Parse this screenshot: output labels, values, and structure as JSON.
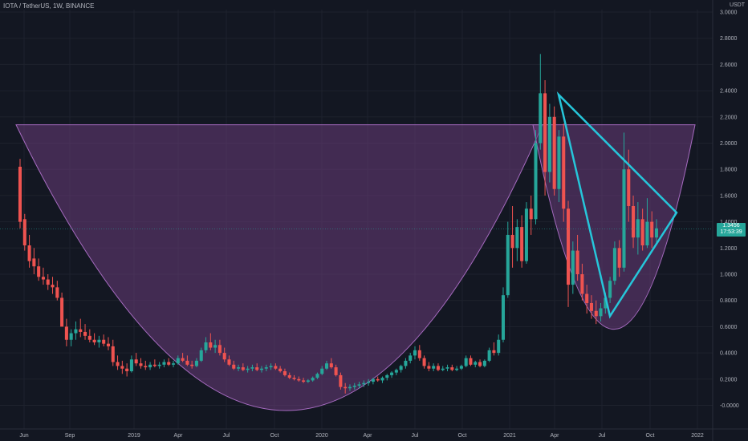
{
  "header": {
    "title": "IOTA / TetherUS, 1W, BINANCE",
    "quote_currency": "USDT"
  },
  "current_price": {
    "price": "1.3456",
    "countdown": "17:53:39",
    "value": 1.3456
  },
  "colors": {
    "background": "#131722",
    "up": "#26a69a",
    "down": "#ef5350",
    "pattern_fill": "#6a3d7a",
    "pattern_line": "#a66bc0",
    "triangle": "#26c6da"
  },
  "chart_data": {
    "type": "candlestick",
    "title": "IOTA / TetherUS, 1W, BINANCE",
    "ylabel": "USDT",
    "ylim": [
      -0.05,
      3.0
    ],
    "y_ticks": [
      "3.0000",
      "2.8000",
      "2.6000",
      "2.4000",
      "2.2000",
      "2.0000",
      "1.8000",
      "1.6000",
      "1.4000",
      "1.2000",
      "1.0000",
      "0.8000",
      "0.6000",
      "0.4000",
      "0.2000",
      "-0.0000"
    ],
    "x_ticks": [
      "Jun",
      "Sep",
      "2019",
      "Apr",
      "Jul",
      "Oct",
      "2020",
      "Apr",
      "Jul",
      "Oct",
      "2021",
      "Apr",
      "Jul",
      "Oct",
      "2022"
    ],
    "grid": true,
    "series": [
      {
        "name": "IOTA / TetherUS",
        "ohlc": [
          [
            1.82,
            1.88,
            1.35,
            1.4
          ],
          [
            1.42,
            1.46,
            1.18,
            1.22
          ],
          [
            1.22,
            1.3,
            1.05,
            1.1
          ],
          [
            1.12,
            1.2,
            1.0,
            1.06
          ],
          [
            1.06,
            1.12,
            0.95,
            0.98
          ],
          [
            0.98,
            1.05,
            0.92,
            0.96
          ],
          [
            0.96,
            1.0,
            0.88,
            0.92
          ],
          [
            0.92,
            0.98,
            0.85,
            0.9
          ],
          [
            0.9,
            0.95,
            0.8,
            0.82
          ],
          [
            0.82,
            0.86,
            0.62,
            0.6
          ],
          [
            0.6,
            0.66,
            0.45,
            0.5
          ],
          [
            0.5,
            0.58,
            0.45,
            0.55
          ],
          [
            0.55,
            0.64,
            0.5,
            0.58
          ],
          [
            0.58,
            0.66,
            0.52,
            0.56
          ],
          [
            0.56,
            0.62,
            0.5,
            0.53
          ],
          [
            0.53,
            0.58,
            0.48,
            0.5
          ],
          [
            0.5,
            0.55,
            0.46,
            0.48
          ],
          [
            0.48,
            0.53,
            0.44,
            0.5
          ],
          [
            0.5,
            0.54,
            0.45,
            0.47
          ],
          [
            0.47,
            0.52,
            0.42,
            0.45
          ],
          [
            0.45,
            0.5,
            0.3,
            0.33
          ],
          [
            0.33,
            0.38,
            0.27,
            0.3
          ],
          [
            0.3,
            0.34,
            0.24,
            0.28
          ],
          [
            0.28,
            0.32,
            0.22,
            0.26
          ],
          [
            0.26,
            0.38,
            0.25,
            0.35
          ],
          [
            0.35,
            0.4,
            0.3,
            0.32
          ],
          [
            0.32,
            0.36,
            0.28,
            0.3
          ],
          [
            0.3,
            0.34,
            0.27,
            0.29
          ],
          [
            0.29,
            0.33,
            0.27,
            0.31
          ],
          [
            0.31,
            0.35,
            0.29,
            0.3
          ],
          [
            0.3,
            0.33,
            0.28,
            0.31
          ],
          [
            0.31,
            0.35,
            0.29,
            0.33
          ],
          [
            0.33,
            0.36,
            0.3,
            0.31
          ],
          [
            0.31,
            0.34,
            0.29,
            0.32
          ],
          [
            0.32,
            0.38,
            0.31,
            0.36
          ],
          [
            0.36,
            0.4,
            0.33,
            0.34
          ],
          [
            0.34,
            0.38,
            0.3,
            0.31
          ],
          [
            0.31,
            0.34,
            0.28,
            0.3
          ],
          [
            0.3,
            0.36,
            0.29,
            0.34
          ],
          [
            0.34,
            0.44,
            0.33,
            0.42
          ],
          [
            0.42,
            0.52,
            0.4,
            0.48
          ],
          [
            0.48,
            0.55,
            0.42,
            0.44
          ],
          [
            0.44,
            0.5,
            0.4,
            0.46
          ],
          [
            0.46,
            0.5,
            0.38,
            0.4
          ],
          [
            0.4,
            0.44,
            0.33,
            0.35
          ],
          [
            0.35,
            0.38,
            0.3,
            0.31
          ],
          [
            0.31,
            0.34,
            0.27,
            0.28
          ],
          [
            0.28,
            0.31,
            0.26,
            0.29
          ],
          [
            0.29,
            0.32,
            0.26,
            0.27
          ],
          [
            0.27,
            0.3,
            0.25,
            0.28
          ],
          [
            0.28,
            0.31,
            0.26,
            0.29
          ],
          [
            0.29,
            0.32,
            0.26,
            0.27
          ],
          [
            0.27,
            0.3,
            0.25,
            0.28
          ],
          [
            0.28,
            0.31,
            0.26,
            0.29
          ],
          [
            0.29,
            0.32,
            0.27,
            0.3
          ],
          [
            0.3,
            0.32,
            0.27,
            0.28
          ],
          [
            0.28,
            0.3,
            0.25,
            0.26
          ],
          [
            0.26,
            0.28,
            0.22,
            0.23
          ],
          [
            0.23,
            0.25,
            0.2,
            0.21
          ],
          [
            0.21,
            0.23,
            0.19,
            0.2
          ],
          [
            0.2,
            0.22,
            0.18,
            0.19
          ],
          [
            0.19,
            0.21,
            0.17,
            0.18
          ],
          [
            0.18,
            0.2,
            0.17,
            0.19
          ],
          [
            0.19,
            0.22,
            0.18,
            0.21
          ],
          [
            0.21,
            0.25,
            0.2,
            0.24
          ],
          [
            0.24,
            0.3,
            0.23,
            0.28
          ],
          [
            0.28,
            0.34,
            0.27,
            0.32
          ],
          [
            0.32,
            0.36,
            0.28,
            0.29
          ],
          [
            0.29,
            0.31,
            0.22,
            0.23
          ],
          [
            0.23,
            0.25,
            0.12,
            0.14
          ],
          [
            0.14,
            0.17,
            0.09,
            0.13
          ],
          [
            0.13,
            0.16,
            0.11,
            0.14
          ],
          [
            0.14,
            0.17,
            0.12,
            0.15
          ],
          [
            0.15,
            0.18,
            0.13,
            0.16
          ],
          [
            0.16,
            0.19,
            0.14,
            0.17
          ],
          [
            0.17,
            0.2,
            0.15,
            0.18
          ],
          [
            0.18,
            0.21,
            0.16,
            0.2
          ],
          [
            0.2,
            0.22,
            0.18,
            0.19
          ],
          [
            0.19,
            0.22,
            0.17,
            0.21
          ],
          [
            0.21,
            0.24,
            0.19,
            0.23
          ],
          [
            0.23,
            0.26,
            0.21,
            0.25
          ],
          [
            0.25,
            0.28,
            0.23,
            0.27
          ],
          [
            0.27,
            0.31,
            0.25,
            0.3
          ],
          [
            0.3,
            0.36,
            0.28,
            0.34
          ],
          [
            0.34,
            0.4,
            0.32,
            0.38
          ],
          [
            0.38,
            0.45,
            0.35,
            0.42
          ],
          [
            0.42,
            0.46,
            0.34,
            0.36
          ],
          [
            0.36,
            0.38,
            0.28,
            0.3
          ],
          [
            0.3,
            0.33,
            0.26,
            0.28
          ],
          [
            0.28,
            0.32,
            0.26,
            0.3
          ],
          [
            0.3,
            0.32,
            0.26,
            0.27
          ],
          [
            0.27,
            0.3,
            0.26,
            0.28
          ],
          [
            0.28,
            0.31,
            0.26,
            0.29
          ],
          [
            0.29,
            0.31,
            0.26,
            0.27
          ],
          [
            0.27,
            0.3,
            0.26,
            0.28
          ],
          [
            0.28,
            0.31,
            0.27,
            0.3
          ],
          [
            0.3,
            0.38,
            0.29,
            0.36
          ],
          [
            0.36,
            0.38,
            0.3,
            0.31
          ],
          [
            0.31,
            0.34,
            0.29,
            0.33
          ],
          [
            0.33,
            0.35,
            0.29,
            0.3
          ],
          [
            0.3,
            0.35,
            0.29,
            0.34
          ],
          [
            0.34,
            0.44,
            0.33,
            0.42
          ],
          [
            0.42,
            0.48,
            0.38,
            0.4
          ],
          [
            0.4,
            0.54,
            0.38,
            0.5
          ],
          [
            0.5,
            0.9,
            0.48,
            0.84
          ],
          [
            0.84,
            1.4,
            0.82,
            1.3
          ],
          [
            1.3,
            1.52,
            1.05,
            1.2
          ],
          [
            1.2,
            1.42,
            1.1,
            1.36
          ],
          [
            1.36,
            1.45,
            1.05,
            1.1
          ],
          [
            1.1,
            1.55,
            1.08,
            1.5
          ],
          [
            1.5,
            1.6,
            1.3,
            1.42
          ],
          [
            1.42,
            2.1,
            1.38,
            2.0
          ],
          [
            2.0,
            2.68,
            1.95,
            2.38
          ],
          [
            2.38,
            2.48,
            1.6,
            1.78
          ],
          [
            1.78,
            2.3,
            1.7,
            2.2
          ],
          [
            2.2,
            2.28,
            1.6,
            1.65
          ],
          [
            1.65,
            2.1,
            1.55,
            2.05
          ],
          [
            2.05,
            2.15,
            1.4,
            1.5
          ],
          [
            1.5,
            1.56,
            0.75,
            0.92
          ],
          [
            0.92,
            1.25,
            0.85,
            1.18
          ],
          [
            1.18,
            1.3,
            0.95,
            1.0
          ],
          [
            1.0,
            1.08,
            0.8,
            0.85
          ],
          [
            0.85,
            0.92,
            0.7,
            0.78
          ],
          [
            0.78,
            0.84,
            0.66,
            0.72
          ],
          [
            0.72,
            0.8,
            0.62,
            0.68
          ],
          [
            0.68,
            0.78,
            0.64,
            0.74
          ],
          [
            0.74,
            0.86,
            0.7,
            0.82
          ],
          [
            0.82,
            0.98,
            0.78,
            0.95
          ],
          [
            0.95,
            1.25,
            0.92,
            1.2
          ],
          [
            1.2,
            1.26,
            0.98,
            1.05
          ],
          [
            1.05,
            2.08,
            1.02,
            1.8
          ],
          [
            1.8,
            1.95,
            1.4,
            1.52
          ],
          [
            1.52,
            1.6,
            1.2,
            1.28
          ],
          [
            1.28,
            1.55,
            1.15,
            1.42
          ],
          [
            1.42,
            1.5,
            1.18,
            1.22
          ],
          [
            1.22,
            1.58,
            1.2,
            1.4
          ],
          [
            1.4,
            1.48,
            1.2,
            1.28
          ],
          [
            1.28,
            1.42,
            1.24,
            1.35
          ]
        ]
      }
    ],
    "annotations": [
      {
        "type": "cup",
        "rim": 2.14,
        "bottom": -0.04
      },
      {
        "type": "handle",
        "rim": 2.14,
        "bottom": 0.58
      },
      {
        "type": "triangle",
        "points": [
          [
            2.37
          ],
          [
            0.68
          ],
          [
            1.47
          ]
        ]
      }
    ]
  }
}
